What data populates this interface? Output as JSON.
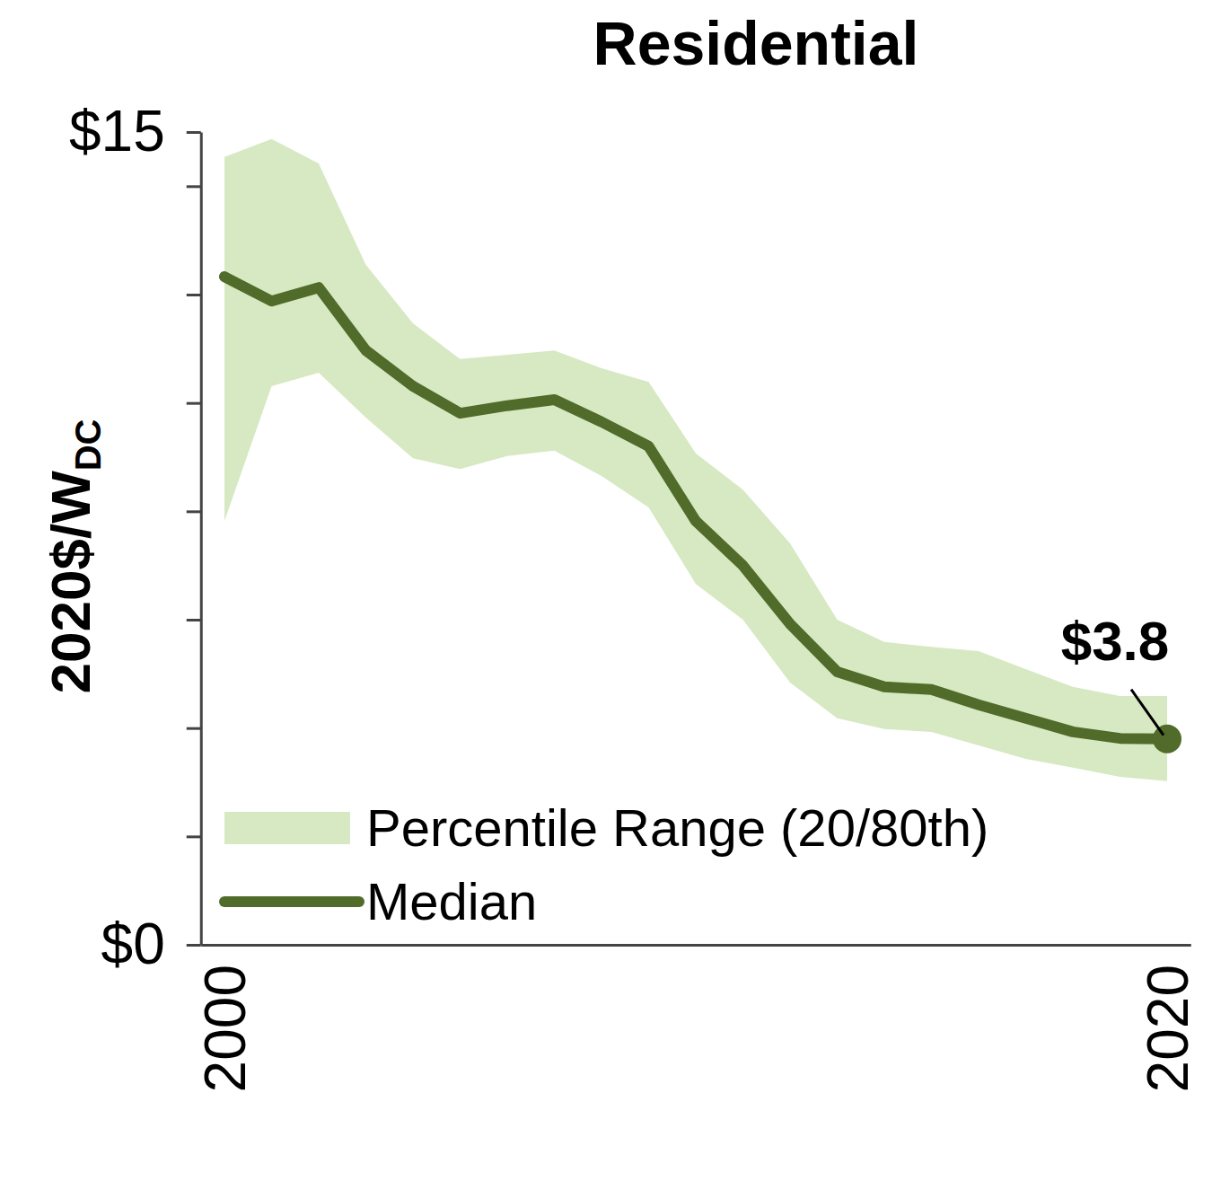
{
  "chart_data": {
    "type": "line",
    "title": "Residential",
    "ylabel": "2020$/W",
    "ylabel_subscript": "DC",
    "x": [
      2000,
      2001,
      2002,
      2003,
      2004,
      2005,
      2006,
      2007,
      2008,
      2009,
      2010,
      2011,
      2012,
      2013,
      2014,
      2015,
      2016,
      2017,
      2018,
      2019,
      2020
    ],
    "series": [
      {
        "name": "Percentile Range (20/80th)",
        "type": "band",
        "color": "#d7e9c3",
        "lower": [
          7.82,
          10.31,
          10.56,
          9.73,
          8.98,
          8.78,
          9.02,
          9.12,
          8.65,
          8.07,
          6.66,
          6.0,
          4.84,
          4.18,
          3.98,
          3.93,
          3.68,
          3.43,
          3.27,
          3.1,
          3.02
        ],
        "upper": [
          14.54,
          14.87,
          14.42,
          12.55,
          11.47,
          10.81,
          10.89,
          10.97,
          10.64,
          10.39,
          9.07,
          8.4,
          7.41,
          6.0,
          5.59,
          5.5,
          5.42,
          5.09,
          4.76,
          4.59,
          4.59
        ]
      },
      {
        "name": "Median",
        "type": "line",
        "color": "#516b2a",
        "values": [
          12.33,
          11.88,
          12.13,
          10.97,
          10.31,
          9.81,
          9.95,
          10.06,
          9.65,
          9.2,
          7.82,
          7.0,
          5.92,
          5.04,
          4.76,
          4.71,
          4.43,
          4.18,
          3.93,
          3.81,
          3.8
        ]
      }
    ],
    "annotations": [
      {
        "text": "$3.8",
        "x": 2020,
        "value": 3.8
      }
    ],
    "xlim": [
      1999.5,
      2020.5
    ],
    "xticks": [
      2000,
      2020
    ],
    "ylim": [
      0,
      15
    ],
    "yticks": [
      {
        "value": 0,
        "label": "$0"
      },
      {
        "value": 2,
        "label": null
      },
      {
        "value": 4,
        "label": null
      },
      {
        "value": 6,
        "label": null
      },
      {
        "value": 8,
        "label": null
      },
      {
        "value": 10,
        "label": null
      },
      {
        "value": 12,
        "label": null
      },
      {
        "value": 14,
        "label": null
      },
      {
        "value": 15,
        "label": "$15"
      }
    ],
    "grid": false,
    "legend": "lower left"
  }
}
